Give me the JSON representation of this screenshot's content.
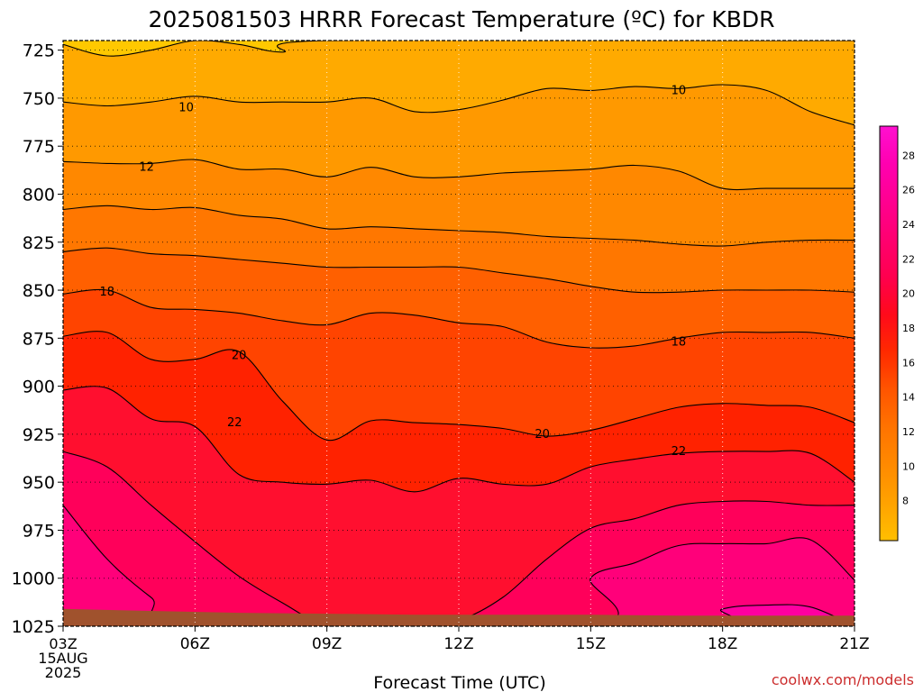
{
  "title": "2025081503 HRRR Forecast Temperature (ºC) for KBDR",
  "xlabel": "Forecast Time (UTC)",
  "watermark": "coolwx.com/models",
  "colors": {
    "watermark": "#cc2e2e",
    "ground": "#a0522d",
    "contour": "#000000"
  },
  "colorbar": {
    "labels": [
      "28",
      "26",
      "24",
      "22",
      "20",
      "18",
      "16",
      "14",
      "12",
      "10",
      "8"
    ],
    "stops": [
      "#ffbf00",
      "#ffa200",
      "#ff8a00",
      "#ff7300",
      "#ff5500",
      "#ff2a00",
      "#ff0a1a",
      "#ff004e",
      "#ff0070",
      "#ff0090",
      "#ff00b0",
      "#ff10d0"
    ]
  },
  "chart_data": {
    "type": "heatmap",
    "title": "2025081503 HRRR Forecast Temperature (ºC) for KBDR",
    "xlabel": "Forecast Time (UTC)",
    "ylabel": "",
    "x_tick_labels": [
      "03Z",
      "06Z",
      "09Z",
      "12Z",
      "15Z",
      "18Z",
      "21Z"
    ],
    "x_start_label": [
      "03Z",
      "15AUG",
      "2025"
    ],
    "x_hours": [
      3,
      21
    ],
    "y_tick_labels": [
      "725",
      "750",
      "775",
      "800",
      "825",
      "850",
      "875",
      "900",
      "925",
      "950",
      "975",
      "1000",
      "1025"
    ],
    "ylim": [
      1025,
      720
    ],
    "grid": true,
    "contour_labels": [
      "10",
      "10",
      "12",
      "18",
      "18",
      "20",
      "20",
      "22",
      "22"
    ],
    "legend": "right",
    "band_colors": [
      "#ffc800",
      "#ffaa00",
      "#ff9900",
      "#ff8800",
      "#ff7700",
      "#ff6000",
      "#ff4400",
      "#ff2200",
      "#ff0f2f",
      "#ff005a",
      "#ff007a",
      "#ff00a0"
    ],
    "contours": [
      {
        "level": 8,
        "color": "#ffaa00",
        "p": [
          [
            3,
            722
          ],
          [
            4,
            728
          ],
          [
            5,
            725
          ],
          [
            6,
            720
          ],
          [
            7,
            722
          ],
          [
            8,
            726
          ],
          [
            9,
            720
          ],
          [
            20,
            720
          ],
          [
            21,
            720
          ]
        ]
      },
      {
        "level": 10,
        "color": "#ff9900",
        "p": [
          [
            3,
            752
          ],
          [
            4,
            754
          ],
          [
            5,
            752
          ],
          [
            6,
            749
          ],
          [
            7,
            752
          ],
          [
            8,
            752
          ],
          [
            9,
            752
          ],
          [
            10,
            750
          ],
          [
            11,
            757
          ],
          [
            12,
            756
          ],
          [
            13,
            751
          ],
          [
            14,
            745
          ],
          [
            15,
            746
          ],
          [
            16,
            744
          ],
          [
            17,
            745
          ],
          [
            18,
            743
          ],
          [
            19,
            746
          ],
          [
            20,
            757
          ],
          [
            21,
            764
          ]
        ]
      },
      {
        "level": 12,
        "color": "#ff8800",
        "p": [
          [
            3,
            783
          ],
          [
            4,
            784
          ],
          [
            5,
            784
          ],
          [
            6,
            782
          ],
          [
            7,
            787
          ],
          [
            8,
            787
          ],
          [
            9,
            791
          ],
          [
            10,
            786
          ],
          [
            11,
            791
          ],
          [
            12,
            791
          ],
          [
            13,
            789
          ],
          [
            14,
            788
          ],
          [
            15,
            787
          ],
          [
            16,
            785
          ],
          [
            17,
            788
          ],
          [
            18,
            797
          ],
          [
            19,
            797
          ],
          [
            20,
            797
          ],
          [
            21,
            797
          ]
        ]
      },
      {
        "level": 14,
        "color": "#ff7700",
        "p": [
          [
            3,
            808
          ],
          [
            4,
            806
          ],
          [
            5,
            808
          ],
          [
            6,
            807
          ],
          [
            7,
            811
          ],
          [
            8,
            813
          ],
          [
            9,
            818
          ],
          [
            10,
            817
          ],
          [
            11,
            818
          ],
          [
            12,
            819
          ],
          [
            13,
            820
          ],
          [
            14,
            822
          ],
          [
            15,
            823
          ],
          [
            16,
            824
          ],
          [
            17,
            826
          ],
          [
            18,
            827
          ],
          [
            19,
            825
          ],
          [
            20,
            824
          ],
          [
            21,
            824
          ]
        ]
      },
      {
        "level": 16,
        "color": "#ff6000",
        "p": [
          [
            3,
            830
          ],
          [
            4,
            828
          ],
          [
            5,
            831
          ],
          [
            6,
            832
          ],
          [
            7,
            834
          ],
          [
            8,
            836
          ],
          [
            9,
            838
          ],
          [
            10,
            838
          ],
          [
            11,
            838
          ],
          [
            12,
            838
          ],
          [
            13,
            841
          ],
          [
            14,
            844
          ],
          [
            15,
            848
          ],
          [
            16,
            851
          ],
          [
            17,
            851
          ],
          [
            18,
            850
          ],
          [
            19,
            850
          ],
          [
            20,
            850
          ],
          [
            21,
            851
          ]
        ]
      },
      {
        "level": 18,
        "color": "#ff4400",
        "p": [
          [
            3,
            852
          ],
          [
            4,
            850
          ],
          [
            5,
            859
          ],
          [
            6,
            860
          ],
          [
            7,
            862
          ],
          [
            8,
            866
          ],
          [
            9,
            868
          ],
          [
            10,
            862
          ],
          [
            11,
            863
          ],
          [
            12,
            867
          ],
          [
            13,
            869
          ],
          [
            14,
            877
          ],
          [
            15,
            880
          ],
          [
            16,
            879
          ],
          [
            17,
            875
          ],
          [
            18,
            872
          ],
          [
            19,
            872
          ],
          [
            20,
            872
          ],
          [
            21,
            875
          ]
        ]
      },
      {
        "level": 20,
        "color": "#ff2200",
        "p": [
          [
            3,
            874
          ],
          [
            4,
            872
          ],
          [
            5,
            886
          ],
          [
            6,
            886
          ],
          [
            7,
            882
          ],
          [
            8,
            908
          ],
          [
            9,
            928
          ],
          [
            10,
            918
          ],
          [
            11,
            919
          ],
          [
            12,
            920
          ],
          [
            13,
            922
          ],
          [
            14,
            926
          ],
          [
            15,
            923
          ],
          [
            16,
            917
          ],
          [
            17,
            911
          ],
          [
            18,
            909
          ],
          [
            19,
            910
          ],
          [
            20,
            911
          ],
          [
            21,
            919
          ]
        ]
      },
      {
        "level": 22,
        "color": "#ff0f2f",
        "p": [
          [
            3,
            902
          ],
          [
            4,
            901
          ],
          [
            5,
            917
          ],
          [
            6,
            921
          ],
          [
            7,
            946
          ],
          [
            8,
            950
          ],
          [
            9,
            951
          ],
          [
            10,
            949
          ],
          [
            11,
            955
          ],
          [
            12,
            948
          ],
          [
            13,
            951
          ],
          [
            14,
            951
          ],
          [
            15,
            942
          ],
          [
            16,
            938
          ],
          [
            17,
            935
          ],
          [
            18,
            934
          ],
          [
            19,
            934
          ],
          [
            20,
            935
          ],
          [
            21,
            950
          ]
        ]
      },
      {
        "level": 24,
        "color": "#ff005a",
        "p": [
          [
            3,
            934
          ],
          [
            4,
            942
          ],
          [
            5,
            962
          ],
          [
            6,
            981
          ],
          [
            7,
            999
          ],
          [
            8,
            1013
          ],
          [
            9,
            1025
          ],
          [
            10,
            1025
          ],
          [
            11,
            1025
          ],
          [
            12,
            1022
          ],
          [
            13,
            1010
          ],
          [
            14,
            990
          ],
          [
            15,
            974
          ],
          [
            16,
            969
          ],
          [
            17,
            962
          ],
          [
            18,
            960
          ],
          [
            19,
            960
          ],
          [
            20,
            962
          ],
          [
            21,
            962
          ]
        ]
      },
      {
        "level": 26,
        "color": "#ff007a",
        "p": [
          [
            3,
            962
          ],
          [
            4,
            990
          ],
          [
            5,
            1010
          ],
          [
            6,
            1025
          ],
          [
            15,
            1025
          ],
          [
            15,
            1000
          ],
          [
            16,
            992
          ],
          [
            17,
            983
          ],
          [
            18,
            982
          ],
          [
            19,
            982
          ],
          [
            20,
            980
          ],
          [
            21,
            1001
          ]
        ]
      },
      {
        "level": 28,
        "color": "#ff00a0",
        "p": [
          [
            3,
            1013
          ],
          [
            4,
            1025
          ],
          [
            17,
            1025
          ],
          [
            18,
            1016
          ],
          [
            19,
            1014
          ],
          [
            20,
            1015
          ],
          [
            21,
            1025
          ]
        ]
      }
    ]
  }
}
